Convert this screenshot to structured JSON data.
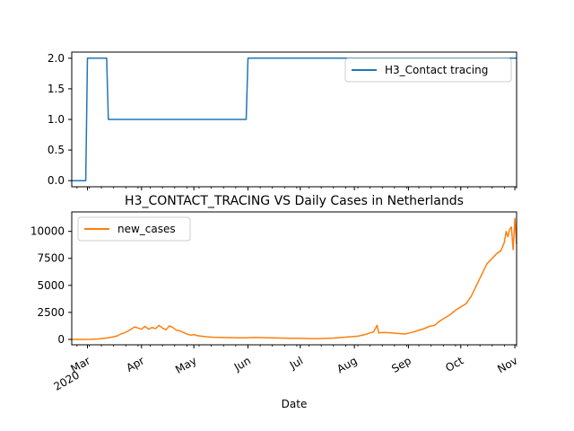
{
  "chart_data": [
    {
      "type": "line",
      "title": "",
      "xlabel": "",
      "ylabel": "",
      "ylim": [
        -0.1,
        2.1
      ],
      "yticks": [
        "0.0",
        "0.5",
        "1.0",
        "1.5",
        "2.0"
      ],
      "legend": "upper right",
      "grid": false,
      "series": [
        {
          "name": "H3_Contact tracing",
          "color": "#1f77b4",
          "step": true,
          "points": [
            [
              "2020-02-21",
              0
            ],
            [
              "2020-02-29",
              0
            ],
            [
              "2020-03-01",
              2
            ],
            [
              "2020-03-12",
              2
            ],
            [
              "2020-03-13",
              1
            ],
            [
              "2020-05-31",
              1
            ],
            [
              "2020-06-01",
              2
            ],
            [
              "2020-11-02",
              2
            ]
          ]
        }
      ]
    },
    {
      "type": "line",
      "title": "H3_CONTACT_TRACING VS Daily Cases in Netherlands",
      "xlabel": "Date",
      "ylabel": "",
      "ylim": [
        -500,
        11800
      ],
      "yticks": [
        "0",
        "2500",
        "5000",
        "7500",
        "10000"
      ],
      "xticks": [
        {
          "date": "2020-03-01",
          "label": "Mar",
          "sub": "2020"
        },
        {
          "date": "2020-04-01",
          "label": "Apr",
          "sub": ""
        },
        {
          "date": "2020-05-01",
          "label": "May",
          "sub": ""
        },
        {
          "date": "2020-06-01",
          "label": "Jun",
          "sub": ""
        },
        {
          "date": "2020-07-01",
          "label": "Jul",
          "sub": ""
        },
        {
          "date": "2020-08-01",
          "label": "Aug",
          "sub": ""
        },
        {
          "date": "2020-09-01",
          "label": "Sep",
          "sub": ""
        },
        {
          "date": "2020-10-01",
          "label": "Oct",
          "sub": ""
        },
        {
          "date": "2020-11-01",
          "label": "Nov",
          "sub": ""
        }
      ],
      "legend": "upper left",
      "grid": false,
      "series": [
        {
          "name": "new_cases",
          "color": "#ff7f0e",
          "points": [
            [
              "2020-02-21",
              0
            ],
            [
              "2020-02-27",
              0
            ],
            [
              "2020-03-03",
              10
            ],
            [
              "2020-03-07",
              40
            ],
            [
              "2020-03-10",
              90
            ],
            [
              "2020-03-12",
              120
            ],
            [
              "2020-03-14",
              180
            ],
            [
              "2020-03-16",
              250
            ],
            [
              "2020-03-18",
              320
            ],
            [
              "2020-03-20",
              500
            ],
            [
              "2020-03-22",
              600
            ],
            [
              "2020-03-24",
              750
            ],
            [
              "2020-03-26",
              950
            ],
            [
              "2020-03-28",
              1150
            ],
            [
              "2020-03-30",
              1050
            ],
            [
              "2020-04-01",
              950
            ],
            [
              "2020-04-03",
              1200
            ],
            [
              "2020-04-05",
              950
            ],
            [
              "2020-04-07",
              1100
            ],
            [
              "2020-04-09",
              1000
            ],
            [
              "2020-04-11",
              1300
            ],
            [
              "2020-04-13",
              1050
            ],
            [
              "2020-04-15",
              900
            ],
            [
              "2020-04-17",
              1250
            ],
            [
              "2020-04-19",
              1100
            ],
            [
              "2020-04-21",
              850
            ],
            [
              "2020-04-23",
              800
            ],
            [
              "2020-04-25",
              650
            ],
            [
              "2020-04-27",
              500
            ],
            [
              "2020-04-29",
              400
            ],
            [
              "2020-05-01",
              450
            ],
            [
              "2020-05-03",
              350
            ],
            [
              "2020-05-05",
              300
            ],
            [
              "2020-05-08",
              250
            ],
            [
              "2020-05-12",
              200
            ],
            [
              "2020-05-16",
              180
            ],
            [
              "2020-05-20",
              170
            ],
            [
              "2020-05-25",
              160
            ],
            [
              "2020-05-31",
              150
            ],
            [
              "2020-06-05",
              180
            ],
            [
              "2020-06-10",
              160
            ],
            [
              "2020-06-15",
              140
            ],
            [
              "2020-06-20",
              120
            ],
            [
              "2020-06-25",
              110
            ],
            [
              "2020-06-30",
              100
            ],
            [
              "2020-07-05",
              80
            ],
            [
              "2020-07-10",
              70
            ],
            [
              "2020-07-15",
              90
            ],
            [
              "2020-07-20",
              120
            ],
            [
              "2020-07-25",
              180
            ],
            [
              "2020-07-30",
              250
            ],
            [
              "2020-08-03",
              300
            ],
            [
              "2020-08-07",
              450
            ],
            [
              "2020-08-10",
              600
            ],
            [
              "2020-08-12",
              700
            ],
            [
              "2020-08-14",
              1300
            ],
            [
              "2020-08-15",
              600
            ],
            [
              "2020-08-18",
              650
            ],
            [
              "2020-08-22",
              600
            ],
            [
              "2020-08-26",
              550
            ],
            [
              "2020-08-30",
              500
            ],
            [
              "2020-09-03",
              650
            ],
            [
              "2020-09-06",
              800
            ],
            [
              "2020-09-10",
              1000
            ],
            [
              "2020-09-13",
              1200
            ],
            [
              "2020-09-16",
              1300
            ],
            [
              "2020-09-19",
              1700
            ],
            [
              "2020-09-22",
              2000
            ],
            [
              "2020-09-25",
              2300
            ],
            [
              "2020-09-28",
              2700
            ],
            [
              "2020-10-01",
              3000
            ],
            [
              "2020-10-04",
              3300
            ],
            [
              "2020-10-07",
              4000
            ],
            [
              "2020-10-10",
              5000
            ],
            [
              "2020-10-13",
              6000
            ],
            [
              "2020-10-16",
              7000
            ],
            [
              "2020-10-19",
              7500
            ],
            [
              "2020-10-22",
              8000
            ],
            [
              "2020-10-24",
              8200
            ],
            [
              "2020-10-26",
              9000
            ],
            [
              "2020-10-27",
              10000
            ],
            [
              "2020-10-28",
              9500
            ],
            [
              "2020-10-29",
              10200
            ],
            [
              "2020-10-30",
              10400
            ],
            [
              "2020-10-31",
              8300
            ],
            [
              "2020-11-01",
              11200
            ],
            [
              "2020-11-02",
              8800
            ]
          ]
        }
      ]
    }
  ]
}
